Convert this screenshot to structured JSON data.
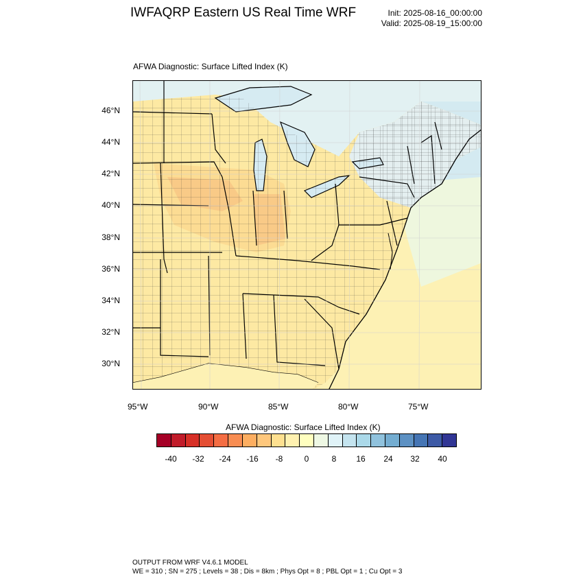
{
  "header": {
    "title": "IWFAQRP Eastern US Real Time WRF",
    "init": "Init: 2025-08-16_00:00:00",
    "valid": "Valid: 2025-08-19_15:00:00"
  },
  "map": {
    "subtitle": "AFWA Diagnostic: Surface Lifted Index   (K)",
    "lat_labels": [
      "46°N",
      "44°N",
      "42°N",
      "40°N",
      "38°N",
      "36°N",
      "34°N",
      "32°N",
      "30°N"
    ],
    "lon_labels": [
      "95°W",
      "90°W",
      "85°W",
      "80°W",
      "75°W"
    ],
    "colors": {
      "land_warm": "#fde9a3",
      "land_warmer": "#fdd487",
      "land_hot": "#f9bc78",
      "lake_cool": "#d6ebf2",
      "ocean_cool": "#d4eaf1",
      "neutral": "#f7f9d8",
      "north_cool": "#e2f1f2"
    }
  },
  "colorbar": {
    "title": "AFWA Diagnostic: Surface Lifted Index  (K)",
    "tick_labels": [
      "-40",
      "-32",
      "-24",
      "-16",
      "-8",
      "0",
      "8",
      "16",
      "24",
      "32",
      "40"
    ],
    "colors": [
      "#a50026",
      "#c11c2a",
      "#d73027",
      "#e44e33",
      "#f46d43",
      "#f88d52",
      "#fdae61",
      "#fec77c",
      "#fee090",
      "#fff1b0",
      "#ffffbf",
      "#eef8e4",
      "#e0f3f8",
      "#c4e4ef",
      "#abd9e9",
      "#90c2dd",
      "#74add1",
      "#5d91c3",
      "#4575b4",
      "#3d5aa6",
      "#313695"
    ]
  },
  "footer": {
    "line1": "OUTPUT FROM WRF V4.6.1 MODEL",
    "line2": "WE = 310 ; SN = 275 ; Levels = 38 ; Dis = 8km ; Phys Opt = 8 ; PBL Opt = 1 ; Cu Opt = 3"
  }
}
